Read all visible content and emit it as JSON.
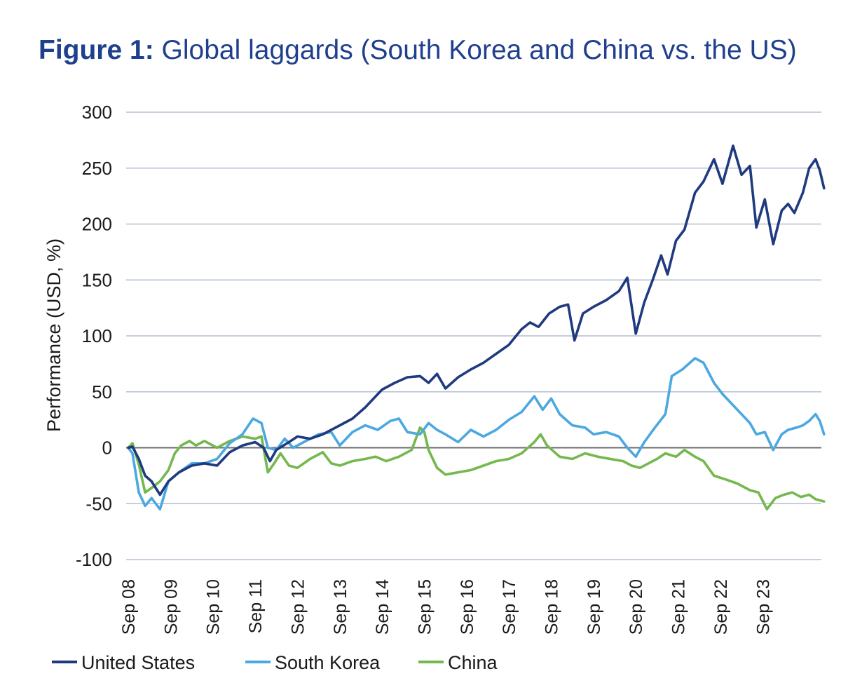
{
  "title": {
    "label": "Figure 1:",
    "text": "Global laggards (South Korea and China vs. the US)"
  },
  "chart_data": {
    "type": "line",
    "ylabel": "Performance (USD, %)",
    "xlabel": "",
    "ylim": [
      -100,
      300
    ],
    "yticks": [
      300,
      250,
      200,
      150,
      100,
      50,
      0,
      -50,
      -100
    ],
    "ytick_labels": [
      "300",
      "250",
      "200",
      "150",
      "100",
      "50",
      "0",
      "-50",
      "-100"
    ],
    "x_tick_labels": [
      "Sep 08",
      "Sep 09",
      "Sep 10",
      "Sep 11",
      "Sep 12",
      "Sep 13",
      "Sep 14",
      "Sep 15",
      "Sep 16",
      "Sep 17",
      "Sep 18",
      "Sep 19",
      "Sep 20",
      "Sep 21",
      "Sep 22",
      "Sep 23"
    ],
    "x_years_from_sep08": [
      0,
      1,
      2,
      3,
      4,
      5,
      6,
      7,
      8,
      9,
      10,
      11,
      12,
      13,
      14,
      15
    ],
    "grid": true,
    "legend_position": "bottom",
    "series": [
      {
        "name": "United States",
        "color": "#1f3a7f",
        "points": [
          [
            0,
            0
          ],
          [
            0.1,
            1
          ],
          [
            0.25,
            -10
          ],
          [
            0.4,
            -25
          ],
          [
            0.55,
            -30
          ],
          [
            0.75,
            -42
          ],
          [
            0.95,
            -30
          ],
          [
            1.2,
            -22
          ],
          [
            1.5,
            -16
          ],
          [
            1.8,
            -14
          ],
          [
            2.1,
            -16
          ],
          [
            2.4,
            -4
          ],
          [
            2.7,
            2
          ],
          [
            3.0,
            5
          ],
          [
            3.2,
            0
          ],
          [
            3.35,
            -12
          ],
          [
            3.5,
            -2
          ],
          [
            3.8,
            5
          ],
          [
            4.0,
            10
          ],
          [
            4.3,
            8
          ],
          [
            4.6,
            12
          ],
          [
            5.0,
            20
          ],
          [
            5.3,
            26
          ],
          [
            5.6,
            36
          ],
          [
            6.0,
            52
          ],
          [
            6.3,
            58
          ],
          [
            6.6,
            63
          ],
          [
            6.9,
            64
          ],
          [
            7.1,
            58
          ],
          [
            7.3,
            66
          ],
          [
            7.5,
            53
          ],
          [
            7.8,
            63
          ],
          [
            8.1,
            70
          ],
          [
            8.4,
            76
          ],
          [
            8.7,
            84
          ],
          [
            9.0,
            92
          ],
          [
            9.3,
            106
          ],
          [
            9.5,
            112
          ],
          [
            9.7,
            108
          ],
          [
            9.95,
            120
          ],
          [
            10.2,
            126
          ],
          [
            10.4,
            128
          ],
          [
            10.55,
            96
          ],
          [
            10.75,
            120
          ],
          [
            11.0,
            126
          ],
          [
            11.3,
            132
          ],
          [
            11.6,
            140
          ],
          [
            11.8,
            152
          ],
          [
            12.0,
            102
          ],
          [
            12.2,
            130
          ],
          [
            12.4,
            150
          ],
          [
            12.6,
            172
          ],
          [
            12.75,
            155
          ],
          [
            12.95,
            185
          ],
          [
            13.15,
            195
          ],
          [
            13.4,
            228
          ],
          [
            13.6,
            238
          ],
          [
            13.85,
            258
          ],
          [
            14.05,
            236
          ],
          [
            14.3,
            270
          ],
          [
            14.5,
            244
          ],
          [
            14.7,
            252
          ],
          [
            14.85,
            197
          ],
          [
            15.05,
            222
          ],
          [
            15.25,
            182
          ],
          [
            15.45,
            212
          ],
          [
            15.6,
            218
          ],
          [
            15.75,
            210
          ],
          [
            15.95,
            228
          ],
          [
            16.1,
            250
          ],
          [
            16.25,
            258
          ],
          [
            16.35,
            248
          ],
          [
            16.45,
            232
          ]
        ]
      },
      {
        "name": "South Korea",
        "color": "#4ba8e0",
        "points": [
          [
            0,
            0
          ],
          [
            0.1,
            -5
          ],
          [
            0.25,
            -40
          ],
          [
            0.4,
            -52
          ],
          [
            0.55,
            -45
          ],
          [
            0.75,
            -55
          ],
          [
            0.95,
            -30
          ],
          [
            1.2,
            -22
          ],
          [
            1.5,
            -14
          ],
          [
            1.8,
            -14
          ],
          [
            2.1,
            -10
          ],
          [
            2.4,
            4
          ],
          [
            2.7,
            12
          ],
          [
            2.95,
            26
          ],
          [
            3.15,
            22
          ],
          [
            3.3,
            0
          ],
          [
            3.5,
            -2
          ],
          [
            3.7,
            8
          ],
          [
            3.9,
            0
          ],
          [
            4.2,
            6
          ],
          [
            4.5,
            12
          ],
          [
            4.8,
            14
          ],
          [
            5.0,
            2
          ],
          [
            5.3,
            14
          ],
          [
            5.6,
            20
          ],
          [
            5.9,
            16
          ],
          [
            6.2,
            24
          ],
          [
            6.4,
            26
          ],
          [
            6.6,
            14
          ],
          [
            6.9,
            12
          ],
          [
            7.1,
            22
          ],
          [
            7.3,
            16
          ],
          [
            7.5,
            12
          ],
          [
            7.8,
            5
          ],
          [
            8.1,
            16
          ],
          [
            8.4,
            10
          ],
          [
            8.7,
            16
          ],
          [
            9.0,
            25
          ],
          [
            9.3,
            32
          ],
          [
            9.6,
            46
          ],
          [
            9.8,
            34
          ],
          [
            10.0,
            44
          ],
          [
            10.2,
            30
          ],
          [
            10.5,
            20
          ],
          [
            10.8,
            18
          ],
          [
            11.0,
            12
          ],
          [
            11.3,
            14
          ],
          [
            11.6,
            10
          ],
          [
            11.8,
            0
          ],
          [
            12.0,
            -8
          ],
          [
            12.2,
            5
          ],
          [
            12.45,
            18
          ],
          [
            12.7,
            30
          ],
          [
            12.85,
            64
          ],
          [
            13.1,
            70
          ],
          [
            13.4,
            80
          ],
          [
            13.6,
            76
          ],
          [
            13.85,
            58
          ],
          [
            14.05,
            48
          ],
          [
            14.3,
            38
          ],
          [
            14.5,
            30
          ],
          [
            14.7,
            22
          ],
          [
            14.85,
            12
          ],
          [
            15.05,
            14
          ],
          [
            15.25,
            -2
          ],
          [
            15.45,
            12
          ],
          [
            15.6,
            16
          ],
          [
            15.8,
            18
          ],
          [
            15.95,
            20
          ],
          [
            16.1,
            24
          ],
          [
            16.25,
            30
          ],
          [
            16.35,
            24
          ],
          [
            16.45,
            12
          ]
        ]
      },
      {
        "name": "China",
        "color": "#74b84e",
        "points": [
          [
            0,
            0
          ],
          [
            0.1,
            4
          ],
          [
            0.25,
            -15
          ],
          [
            0.4,
            -40
          ],
          [
            0.55,
            -36
          ],
          [
            0.75,
            -30
          ],
          [
            0.95,
            -20
          ],
          [
            1.1,
            -5
          ],
          [
            1.25,
            2
          ],
          [
            1.45,
            6
          ],
          [
            1.6,
            2
          ],
          [
            1.8,
            6
          ],
          [
            2.1,
            0
          ],
          [
            2.4,
            6
          ],
          [
            2.7,
            10
          ],
          [
            3.0,
            8
          ],
          [
            3.15,
            10
          ],
          [
            3.3,
            -22
          ],
          [
            3.45,
            -14
          ],
          [
            3.6,
            -5
          ],
          [
            3.8,
            -16
          ],
          [
            4.0,
            -18
          ],
          [
            4.3,
            -10
          ],
          [
            4.6,
            -4
          ],
          [
            4.8,
            -14
          ],
          [
            5.0,
            -16
          ],
          [
            5.3,
            -12
          ],
          [
            5.6,
            -10
          ],
          [
            5.85,
            -8
          ],
          [
            6.1,
            -12
          ],
          [
            6.4,
            -8
          ],
          [
            6.7,
            -2
          ],
          [
            6.9,
            18
          ],
          [
            7.0,
            14
          ],
          [
            7.1,
            -2
          ],
          [
            7.3,
            -18
          ],
          [
            7.5,
            -24
          ],
          [
            7.8,
            -22
          ],
          [
            8.1,
            -20
          ],
          [
            8.4,
            -16
          ],
          [
            8.7,
            -12
          ],
          [
            9.0,
            -10
          ],
          [
            9.3,
            -5
          ],
          [
            9.6,
            5
          ],
          [
            9.75,
            12
          ],
          [
            9.9,
            2
          ],
          [
            10.2,
            -8
          ],
          [
            10.5,
            -10
          ],
          [
            10.8,
            -5
          ],
          [
            11.1,
            -8
          ],
          [
            11.4,
            -10
          ],
          [
            11.7,
            -12
          ],
          [
            11.9,
            -16
          ],
          [
            12.1,
            -18
          ],
          [
            12.3,
            -14
          ],
          [
            12.5,
            -10
          ],
          [
            12.7,
            -5
          ],
          [
            12.95,
            -8
          ],
          [
            13.15,
            -2
          ],
          [
            13.4,
            -8
          ],
          [
            13.6,
            -12
          ],
          [
            13.85,
            -25
          ],
          [
            14.1,
            -28
          ],
          [
            14.4,
            -32
          ],
          [
            14.7,
            -38
          ],
          [
            14.9,
            -40
          ],
          [
            15.1,
            -55
          ],
          [
            15.3,
            -45
          ],
          [
            15.5,
            -42
          ],
          [
            15.7,
            -40
          ],
          [
            15.9,
            -44
          ],
          [
            16.1,
            -42
          ],
          [
            16.25,
            -46
          ],
          [
            16.45,
            -48
          ]
        ]
      }
    ]
  }
}
